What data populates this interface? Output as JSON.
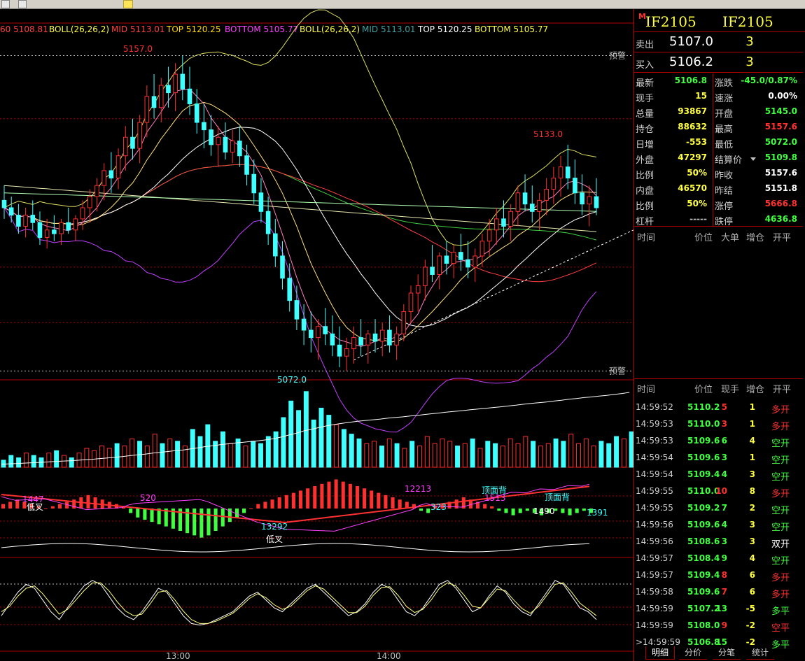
{
  "colors": {
    "up": "#ff3030",
    "down": "#40ffff",
    "green": "#40ff40",
    "yellow": "#ffff40",
    "grid": "#b00000",
    "white": "#ffffff",
    "magenta": "#ff40ff"
  },
  "toolbar": {
    "icons": [
      "window-icon",
      "save-icon",
      "highlight-icon"
    ]
  },
  "legend": {
    "ma_prefix": "60 5108.81",
    "boll_a": "BOLL(26,26,2)",
    "mid_a": "MID 5113.01",
    "top_a": "TOP 5120.25",
    "bottom_a": "BOTTOM 5105.77",
    "boll_b": "BOLL(26,26,2)",
    "mid_b": "MID 5113.01",
    "top_b": "TOP 5120.25",
    "bottom_b": "BOTTOM 5105.77"
  },
  "chart_data": [
    {
      "type": "candlestick",
      "high_label": "5157.0",
      "low_label": "5072.0",
      "recent_high_label": "5133.0",
      "alert_label": "预警",
      "ylim": [
        5070,
        5162
      ],
      "alert_levels": [
        5157.0,
        5072.0
      ],
      "dashed_levels": [
        5140,
        5100,
        5085
      ],
      "x_ticks": [
        "13:00",
        "14:00"
      ],
      "ohlc": [
        [
          5118,
          5122,
          5113,
          5116
        ],
        [
          5116,
          5119,
          5112,
          5114
        ],
        [
          5114,
          5117,
          5109,
          5111
        ],
        [
          5111,
          5116,
          5108,
          5114
        ],
        [
          5114,
          5118,
          5110,
          5112
        ],
        [
          5112,
          5115,
          5106,
          5108
        ],
        [
          5108,
          5113,
          5105,
          5110
        ],
        [
          5110,
          5114,
          5107,
          5109
        ],
        [
          5109,
          5113,
          5106,
          5112
        ],
        [
          5112,
          5116,
          5109,
          5110
        ],
        [
          5110,
          5114,
          5107,
          5113
        ],
        [
          5113,
          5118,
          5110,
          5116
        ],
        [
          5116,
          5121,
          5112,
          5119
        ],
        [
          5119,
          5124,
          5115,
          5122
        ],
        [
          5122,
          5128,
          5118,
          5126
        ],
        [
          5126,
          5131,
          5120,
          5124
        ],
        [
          5124,
          5132,
          5121,
          5130
        ],
        [
          5130,
          5138,
          5126,
          5135
        ],
        [
          5135,
          5140,
          5129,
          5132
        ],
        [
          5132,
          5141,
          5128,
          5139
        ],
        [
          5139,
          5149,
          5135,
          5146
        ],
        [
          5146,
          5152,
          5140,
          5143
        ],
        [
          5143,
          5151,
          5139,
          5149
        ],
        [
          5149,
          5154,
          5143,
          5147
        ],
        [
          5147,
          5155,
          5142,
          5152
        ],
        [
          5152,
          5157,
          5145,
          5148
        ],
        [
          5148,
          5154,
          5141,
          5144
        ],
        [
          5144,
          5148,
          5136,
          5139
        ],
        [
          5139,
          5144,
          5132,
          5137
        ],
        [
          5137,
          5141,
          5130,
          5133
        ],
        [
          5133,
          5138,
          5127,
          5135
        ],
        [
          5135,
          5139,
          5129,
          5131
        ],
        [
          5131,
          5137,
          5128,
          5134
        ],
        [
          5134,
          5138,
          5127,
          5130
        ],
        [
          5130,
          5133,
          5122,
          5125
        ],
        [
          5125,
          5129,
          5117,
          5120
        ],
        [
          5120,
          5124,
          5112,
          5115
        ],
        [
          5115,
          5119,
          5106,
          5109
        ],
        [
          5109,
          5113,
          5100,
          5103
        ],
        [
          5103,
          5107,
          5094,
          5097
        ],
        [
          5097,
          5101,
          5088,
          5091
        ],
        [
          5091,
          5095,
          5083,
          5086
        ],
        [
          5086,
          5090,
          5079,
          5083
        ],
        [
          5083,
          5088,
          5077,
          5081
        ],
        [
          5081,
          5086,
          5075,
          5084
        ],
        [
          5084,
          5089,
          5079,
          5082
        ],
        [
          5082,
          5087,
          5076,
          5079
        ],
        [
          5079,
          5084,
          5073,
          5076
        ],
        [
          5076,
          5081,
          5072,
          5078
        ],
        [
          5078,
          5084,
          5074,
          5081
        ],
        [
          5081,
          5086,
          5076,
          5079
        ],
        [
          5079,
          5083,
          5074,
          5082
        ],
        [
          5082,
          5086,
          5077,
          5080
        ],
        [
          5080,
          5085,
          5076,
          5083
        ],
        [
          5083,
          5087,
          5077,
          5079
        ],
        [
          5079,
          5084,
          5075,
          5082
        ],
        [
          5082,
          5090,
          5080,
          5088
        ],
        [
          5088,
          5095,
          5085,
          5093
        ],
        [
          5093,
          5098,
          5088,
          5095
        ],
        [
          5095,
          5102,
          5091,
          5100
        ],
        [
          5100,
          5106,
          5096,
          5098
        ],
        [
          5098,
          5104,
          5094,
          5103
        ],
        [
          5103,
          5107,
          5098,
          5101
        ],
        [
          5101,
          5106,
          5097,
          5104
        ],
        [
          5104,
          5109,
          5099,
          5102
        ],
        [
          5102,
          5107,
          5097,
          5100
        ],
        [
          5100,
          5105,
          5096,
          5103
        ],
        [
          5103,
          5109,
          5100,
          5107
        ],
        [
          5107,
          5113,
          5103,
          5110
        ],
        [
          5110,
          5116,
          5106,
          5113
        ],
        [
          5113,
          5118,
          5108,
          5111
        ],
        [
          5111,
          5117,
          5107,
          5115
        ],
        [
          5115,
          5122,
          5111,
          5120
        ],
        [
          5120,
          5125,
          5115,
          5117
        ],
        [
          5117,
          5122,
          5112,
          5115
        ],
        [
          5115,
          5120,
          5110,
          5118
        ],
        [
          5118,
          5124,
          5114,
          5121
        ],
        [
          5121,
          5127,
          5117,
          5124
        ],
        [
          5124,
          5130,
          5119,
          5127
        ],
        [
          5127,
          5133,
          5121,
          5124
        ],
        [
          5124,
          5129,
          5117,
          5120
        ],
        [
          5120,
          5125,
          5114,
          5117
        ],
        [
          5117,
          5122,
          5111,
          5119
        ],
        [
          5119,
          5124,
          5114,
          5116
        ]
      ]
    },
    {
      "type": "bar",
      "title": "成交量",
      "values": [
        3,
        5,
        4,
        6,
        5,
        4,
        6,
        7,
        5,
        4,
        6,
        8,
        7,
        9,
        8,
        10,
        9,
        12,
        11,
        9,
        14,
        10,
        12,
        11,
        9,
        16,
        13,
        18,
        11,
        15,
        10,
        12,
        9,
        11,
        10,
        13,
        15,
        21,
        28,
        24,
        32,
        20,
        25,
        22,
        18,
        16,
        14,
        12,
        10,
        11,
        9,
        12,
        10,
        8,
        11,
        9,
        13,
        10,
        12,
        11,
        9,
        10,
        12,
        8,
        11,
        10,
        9,
        12,
        10,
        13,
        11,
        9,
        10,
        12,
        11,
        14,
        10,
        12,
        9,
        11,
        10,
        13,
        12,
        15
      ]
    },
    {
      "type": "line",
      "title": "MACD",
      "labels": [
        "1447",
        "低叉",
        "520",
        "13292",
        "低叉",
        "12213",
        "323",
        "顶面背",
        "1513",
        "顶面背",
        "1490",
        "1391"
      ],
      "histogram": [
        2,
        3,
        4,
        3,
        2,
        1,
        0,
        1,
        2,
        3,
        4,
        5,
        6,
        5,
        4,
        3,
        2,
        1,
        -2,
        -4,
        -5,
        -6,
        -7,
        -8,
        -9,
        -10,
        -11,
        -12,
        -13,
        -12,
        -10,
        -8,
        -6,
        -4,
        -2,
        0,
        2,
        3,
        4,
        5,
        6,
        7,
        8,
        9,
        10,
        11,
        12,
        13,
        12,
        11,
        10,
        9,
        8,
        7,
        6,
        5,
        4,
        3,
        2,
        -1,
        -2,
        1,
        2,
        3,
        4,
        5,
        4,
        3,
        2,
        1,
        -1,
        -2,
        -3,
        -2,
        -1,
        -2,
        -3,
        -2,
        -1,
        -2,
        -3,
        -2,
        -1,
        -2
      ]
    },
    {
      "type": "line",
      "title": "KDJ",
      "series": [
        {
          "values": [
            40,
            55,
            70,
            80,
            75,
            60,
            45,
            35,
            50,
            65,
            78,
            85,
            80,
            65,
            50,
            40,
            35,
            45,
            60,
            75,
            70,
            55,
            40,
            30,
            28,
            30,
            35,
            40,
            45,
            55,
            65,
            70,
            60,
            50,
            45,
            55,
            65,
            75,
            80,
            70,
            60,
            50,
            40,
            45,
            55,
            70,
            80,
            75,
            60,
            45,
            40,
            50,
            65,
            80,
            85,
            75,
            60,
            45,
            50,
            65,
            78,
            70,
            55,
            45,
            40,
            55,
            70,
            85,
            80,
            65,
            50,
            45,
            35
          ]
        },
        {
          "values": [
            45,
            52,
            65,
            75,
            78,
            68,
            55,
            42,
            48,
            60,
            72,
            82,
            82,
            72,
            58,
            46,
            40,
            42,
            55,
            70,
            72,
            60,
            46,
            35,
            30,
            30,
            33,
            38,
            43,
            52,
            62,
            68,
            63,
            54,
            48,
            52,
            62,
            72,
            78,
            74,
            64,
            54,
            44,
            44,
            52,
            66,
            76,
            77,
            66,
            52,
            44,
            48,
            60,
            75,
            82,
            78,
            66,
            52,
            50,
            62,
            74,
            72,
            60,
            49,
            43,
            52,
            66,
            80,
            82,
            70,
            56,
            48,
            40
          ]
        }
      ]
    }
  ],
  "panel": {
    "m_mark": "M",
    "code1": "IF2105",
    "code2": "IF2105",
    "sell_label": "卖出",
    "sell_price": "5107.0",
    "sell_vol": "3",
    "buy_label": "买入",
    "buy_price": "5106.2",
    "buy_vol": "3",
    "stats": [
      {
        "k1": "最新",
        "v1": "5106.8",
        "c1": "#40ff40",
        "k2": "涨跌",
        "v2": "-45.0/0.87%",
        "c2": "#40ff40"
      },
      {
        "k1": "现手",
        "v1": "15",
        "c1": "#ffff40",
        "k2": "速涨",
        "v2": "0.00%",
        "c2": "#ffffff"
      },
      {
        "k1": "总量",
        "v1": "93867",
        "c1": "#ffff40",
        "k2": "开盘",
        "v2": "5145.0",
        "c2": "#40ff40"
      },
      {
        "k1": "持仓",
        "v1": "88632",
        "c1": "#ffff40",
        "k2": "最高",
        "v2": "5157.6",
        "c2": "#ff3030"
      },
      {
        "k1": "日增",
        "v1": "-553",
        "c1": "#ffff40",
        "k2": "最低",
        "v2": "5072.0",
        "c2": "#40ff40"
      },
      {
        "k1": "外盘",
        "v1": "47297",
        "c1": "#ffff40",
        "k2": "结算价",
        "v2": "5109.8",
        "c2": "#40ff40"
      },
      {
        "k1": "比例",
        "v1": "50%",
        "c1": "#ffff40",
        "k2": "昨收",
        "v2": "5157.6",
        "c2": "#ffffff"
      },
      {
        "k1": "内盘",
        "v1": "46570",
        "c1": "#ffff40",
        "k2": "昨结",
        "v2": "5151.8",
        "c2": "#ffffff"
      },
      {
        "k1": "比例",
        "v1": "50%",
        "c1": "#ffff40",
        "k2": "涨停",
        "v2": "5666.8",
        "c2": "#ff3030"
      },
      {
        "k1": "杠杆",
        "v1": "-----",
        "c1": "#c0c0c0",
        "k2": "跌停",
        "v2": "4636.8",
        "c2": "#40ff40"
      }
    ],
    "hdr1": {
      "time": "时间",
      "price": "价位",
      "big": "大单",
      "inc": "增仓",
      "oc": "开平"
    },
    "hdr2": {
      "time": "时间",
      "price": "价位",
      "qty": "现手",
      "inc": "增仓",
      "oc": "开平"
    },
    "ticks": [
      {
        "time": "14:59:52",
        "price": "5110.2",
        "qty": "5",
        "qc": "#ff3030",
        "inc": "1",
        "oc": "多开",
        "oc_c": "#ff3030"
      },
      {
        "time": "14:59:53",
        "price": "5110.0",
        "qty": "3",
        "qc": "#ff3030",
        "inc": "1",
        "oc": "多开",
        "oc_c": "#ff3030"
      },
      {
        "time": "14:59:53",
        "price": "5109.6",
        "qty": "6",
        "qc": "#40ff40",
        "inc": "4",
        "oc": "空开",
        "oc_c": "#40ff40"
      },
      {
        "time": "14:59:54",
        "price": "5109.6",
        "qty": "3",
        "qc": "#40ff40",
        "inc": "1",
        "oc": "空开",
        "oc_c": "#40ff40"
      },
      {
        "time": "14:59:54",
        "price": "5109.4",
        "qty": "4",
        "qc": "#40ff40",
        "inc": "3",
        "oc": "空开",
        "oc_c": "#40ff40"
      },
      {
        "time": "14:59:55",
        "price": "5110.0",
        "qty": "10",
        "qc": "#ff3030",
        "inc": "8",
        "oc": "多开",
        "oc_c": "#ff3030"
      },
      {
        "time": "14:59:55",
        "price": "5109.2",
        "qty": "7",
        "qc": "#40ff40",
        "inc": "2",
        "oc": "空开",
        "oc_c": "#40ff40"
      },
      {
        "time": "14:59:56",
        "price": "5109.6",
        "qty": "4",
        "qc": "#40ff40",
        "inc": "3",
        "oc": "空开",
        "oc_c": "#40ff40"
      },
      {
        "time": "14:59:56",
        "price": "5108.6",
        "qty": "3",
        "qc": "#40ff40",
        "inc": "3",
        "oc": "双开",
        "oc_c": "#ffffff"
      },
      {
        "time": "14:59:57",
        "price": "5108.4",
        "qty": "9",
        "qc": "#40ff40",
        "inc": "4",
        "oc": "空开",
        "oc_c": "#40ff40"
      },
      {
        "time": "14:59:57",
        "price": "5109.4",
        "qty": "8",
        "qc": "#ff3030",
        "inc": "6",
        "oc": "多开",
        "oc_c": "#ff3030"
      },
      {
        "time": "14:59:58",
        "price": "5109.6",
        "qty": "7",
        "qc": "#ff3030",
        "inc": "6",
        "oc": "多开",
        "oc_c": "#ff3030"
      },
      {
        "time": "14:59:59",
        "price": "5107.2",
        "qty": "13",
        "qc": "#40ff40",
        "inc": "-5",
        "oc": "多平",
        "oc_c": "#40ff40"
      },
      {
        "time": "14:59:59",
        "price": "5108.0",
        "qty": "9",
        "qc": "#ff3030",
        "inc": "-2",
        "oc": "空平",
        "oc_c": "#ff3030"
      },
      {
        "time": ">14:59:59",
        "price": "5106.8",
        "qty": "15",
        "qc": "#40ff40",
        "inc": "-2",
        "oc": "多平",
        "oc_c": "#40ff40"
      }
    ],
    "tabs": [
      "明细",
      "分价",
      "分笔",
      "统计"
    ]
  }
}
